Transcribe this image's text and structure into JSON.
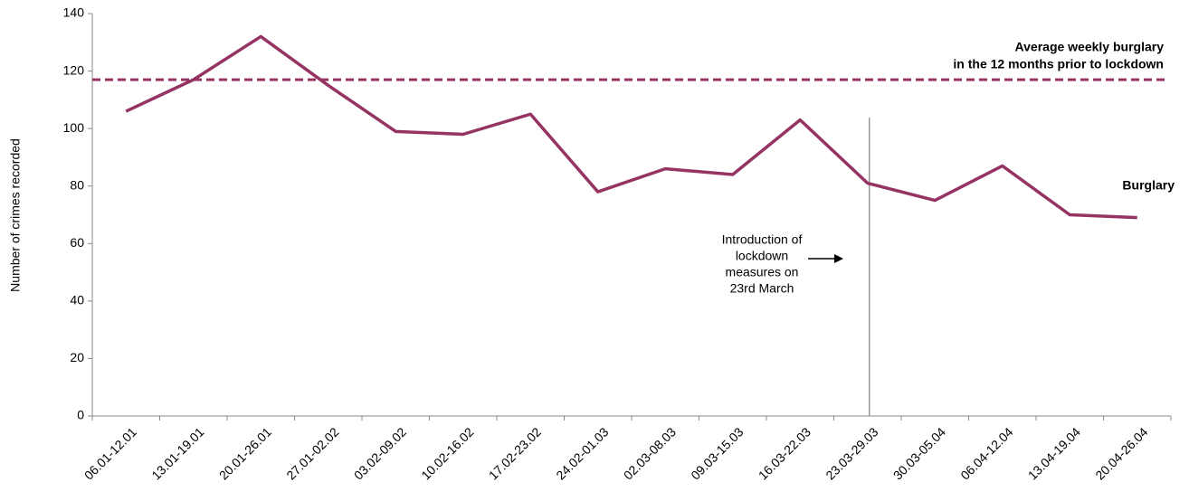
{
  "chart_data": {
    "type": "line",
    "y_label": "Number of crimes recorded",
    "categories": [
      "06.01-12.01",
      "13.01-19.01",
      "20.01-26.01",
      "27.01-02.02",
      "03.02-09.02",
      "10.02-16.02",
      "17.02-23.02",
      "24.02-01.03",
      "02.03-08.03",
      "09.03-15.03",
      "16.03-22.03",
      "23.03-29.03",
      "30.03-05.04",
      "06.04-12.04",
      "13.04-19.04",
      "20.04-26.04"
    ],
    "series": [
      {
        "name": "Burglary",
        "color": "#953463",
        "values": [
          106,
          117,
          132,
          115,
          99,
          98,
          105,
          78,
          86,
          84,
          103,
          81,
          75,
          87,
          70,
          69
        ]
      }
    ],
    "reference_line": {
      "value": 117,
      "color": "#953463",
      "label": [
        "Average weekly burglary",
        "in the 12 months prior to lockdown"
      ]
    },
    "marker_category": "23.03-29.03",
    "annotation": [
      "Introduction of",
      "lockdown",
      "measures on",
      "23rd March"
    ],
    "ylim": [
      0,
      140
    ],
    "yticks": [
      0,
      20,
      40,
      60,
      80,
      100,
      120,
      140
    ]
  }
}
